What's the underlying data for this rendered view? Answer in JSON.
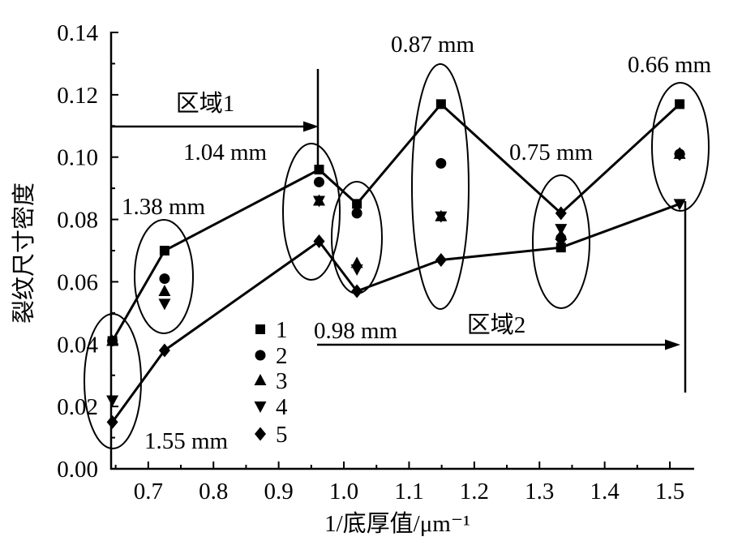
{
  "chart_data": {
    "type": "scatter",
    "xlabel": "1/底厚值/μm⁻¹",
    "ylabel": "裂纹尺寸密度",
    "xlim": [
      0.643,
      1.536
    ],
    "ylim": [
      0,
      0.14
    ],
    "x_ticks": [
      "0.7",
      "0.8",
      "0.9",
      "1.0",
      "1.1",
      "1.2",
      "1.3",
      "1.4",
      "1.5"
    ],
    "y_ticks": [
      "0.00",
      "0.02",
      "0.04",
      "0.06",
      "0.08",
      "0.10",
      "0.12",
      "0.14"
    ],
    "x": [
      0.645,
      0.725,
      0.962,
      1.02,
      1.149,
      1.333,
      1.515
    ],
    "series": [
      {
        "name": "1",
        "marker": "square",
        "values": [
          0.041,
          0.07,
          0.096,
          0.085,
          0.117,
          0.071,
          0.117
        ]
      },
      {
        "name": "2",
        "marker": "circle",
        "values": [
          0.041,
          0.061,
          0.092,
          0.082,
          0.098,
          0.074,
          0.101
        ]
      },
      {
        "name": "3",
        "marker": "triangle-up",
        "values": [
          0.041,
          0.057,
          0.086,
          0.066,
          0.081,
          0.075,
          0.101
        ]
      },
      {
        "name": "4",
        "marker": "triangle-down",
        "values": [
          0.022,
          0.053,
          0.086,
          0.064,
          0.081,
          0.077,
          0.085
        ]
      },
      {
        "name": "5",
        "marker": "diamond",
        "values": [
          0.015,
          0.038,
          0.073,
          0.057,
          0.067,
          0.082,
          0.101
        ]
      }
    ],
    "lines": [
      {
        "values": [
          0.041,
          0.07,
          0.096,
          0.085,
          0.117,
          0.082,
          0.117
        ]
      },
      {
        "values": [
          0.015,
          0.038,
          0.073,
          0.057,
          0.067,
          0.071,
          0.085
        ]
      }
    ],
    "group_labels": [
      "1.55 mm",
      "1.38 mm",
      "1.04 mm",
      "0.98 mm",
      "0.87 mm",
      "0.75 mm",
      "0.66 mm"
    ],
    "regions": [
      "区域1",
      "区域2"
    ],
    "legend_position": "lower-center",
    "grid": false
  }
}
